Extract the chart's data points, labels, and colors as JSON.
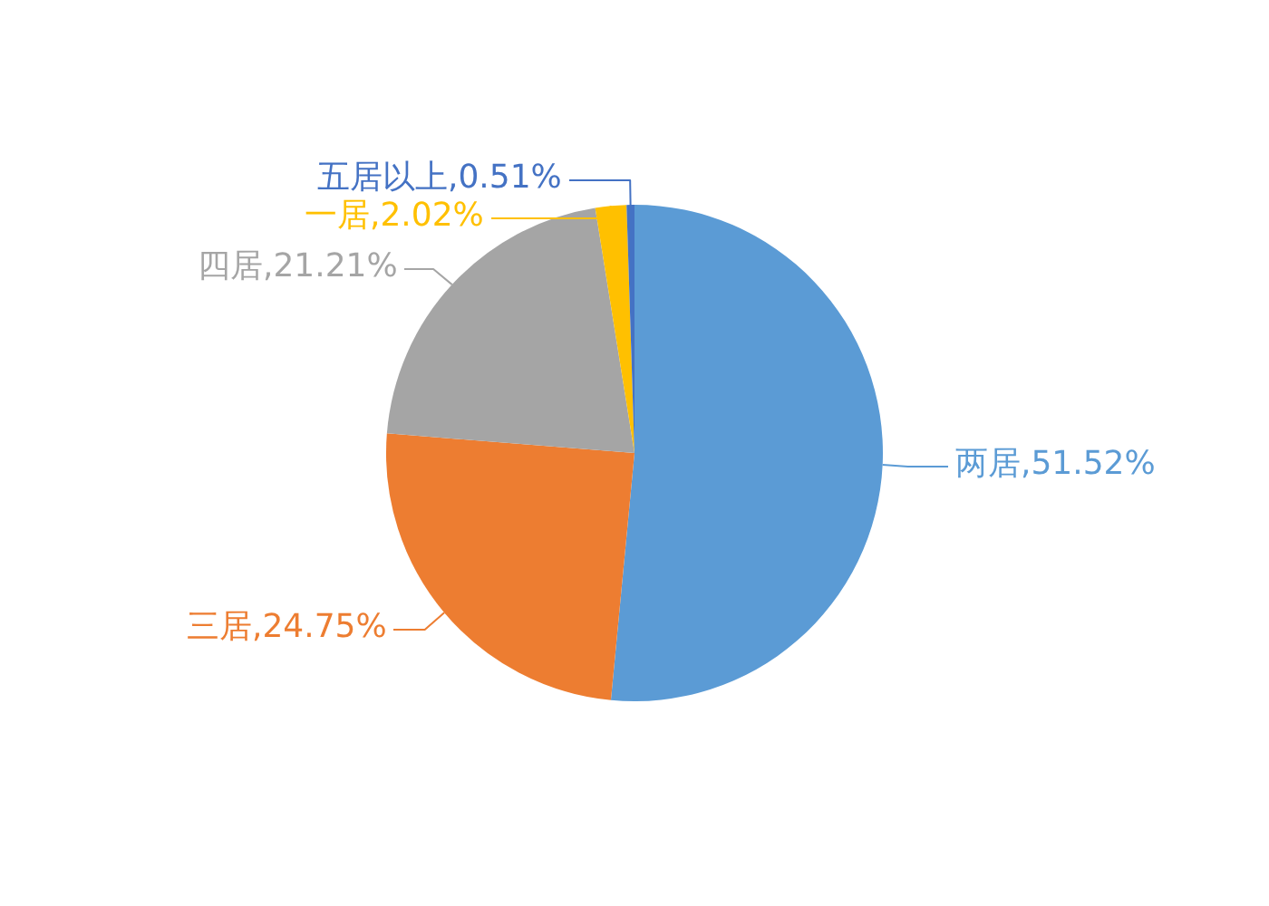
{
  "chart_data": {
    "type": "pie",
    "categories": [
      "两居",
      "三居",
      "四居",
      "一居",
      "五居以上"
    ],
    "values": [
      51.52,
      24.75,
      21.21,
      2.02,
      0.51
    ],
    "colors": [
      "#5b9bd5",
      "#ed7d31",
      "#a5a5a5",
      "#ffc000",
      "#4472c4"
    ],
    "value_labels": [
      "51.52%",
      "24.75%",
      "21.21%",
      "2.02%",
      "0.51%"
    ]
  }
}
